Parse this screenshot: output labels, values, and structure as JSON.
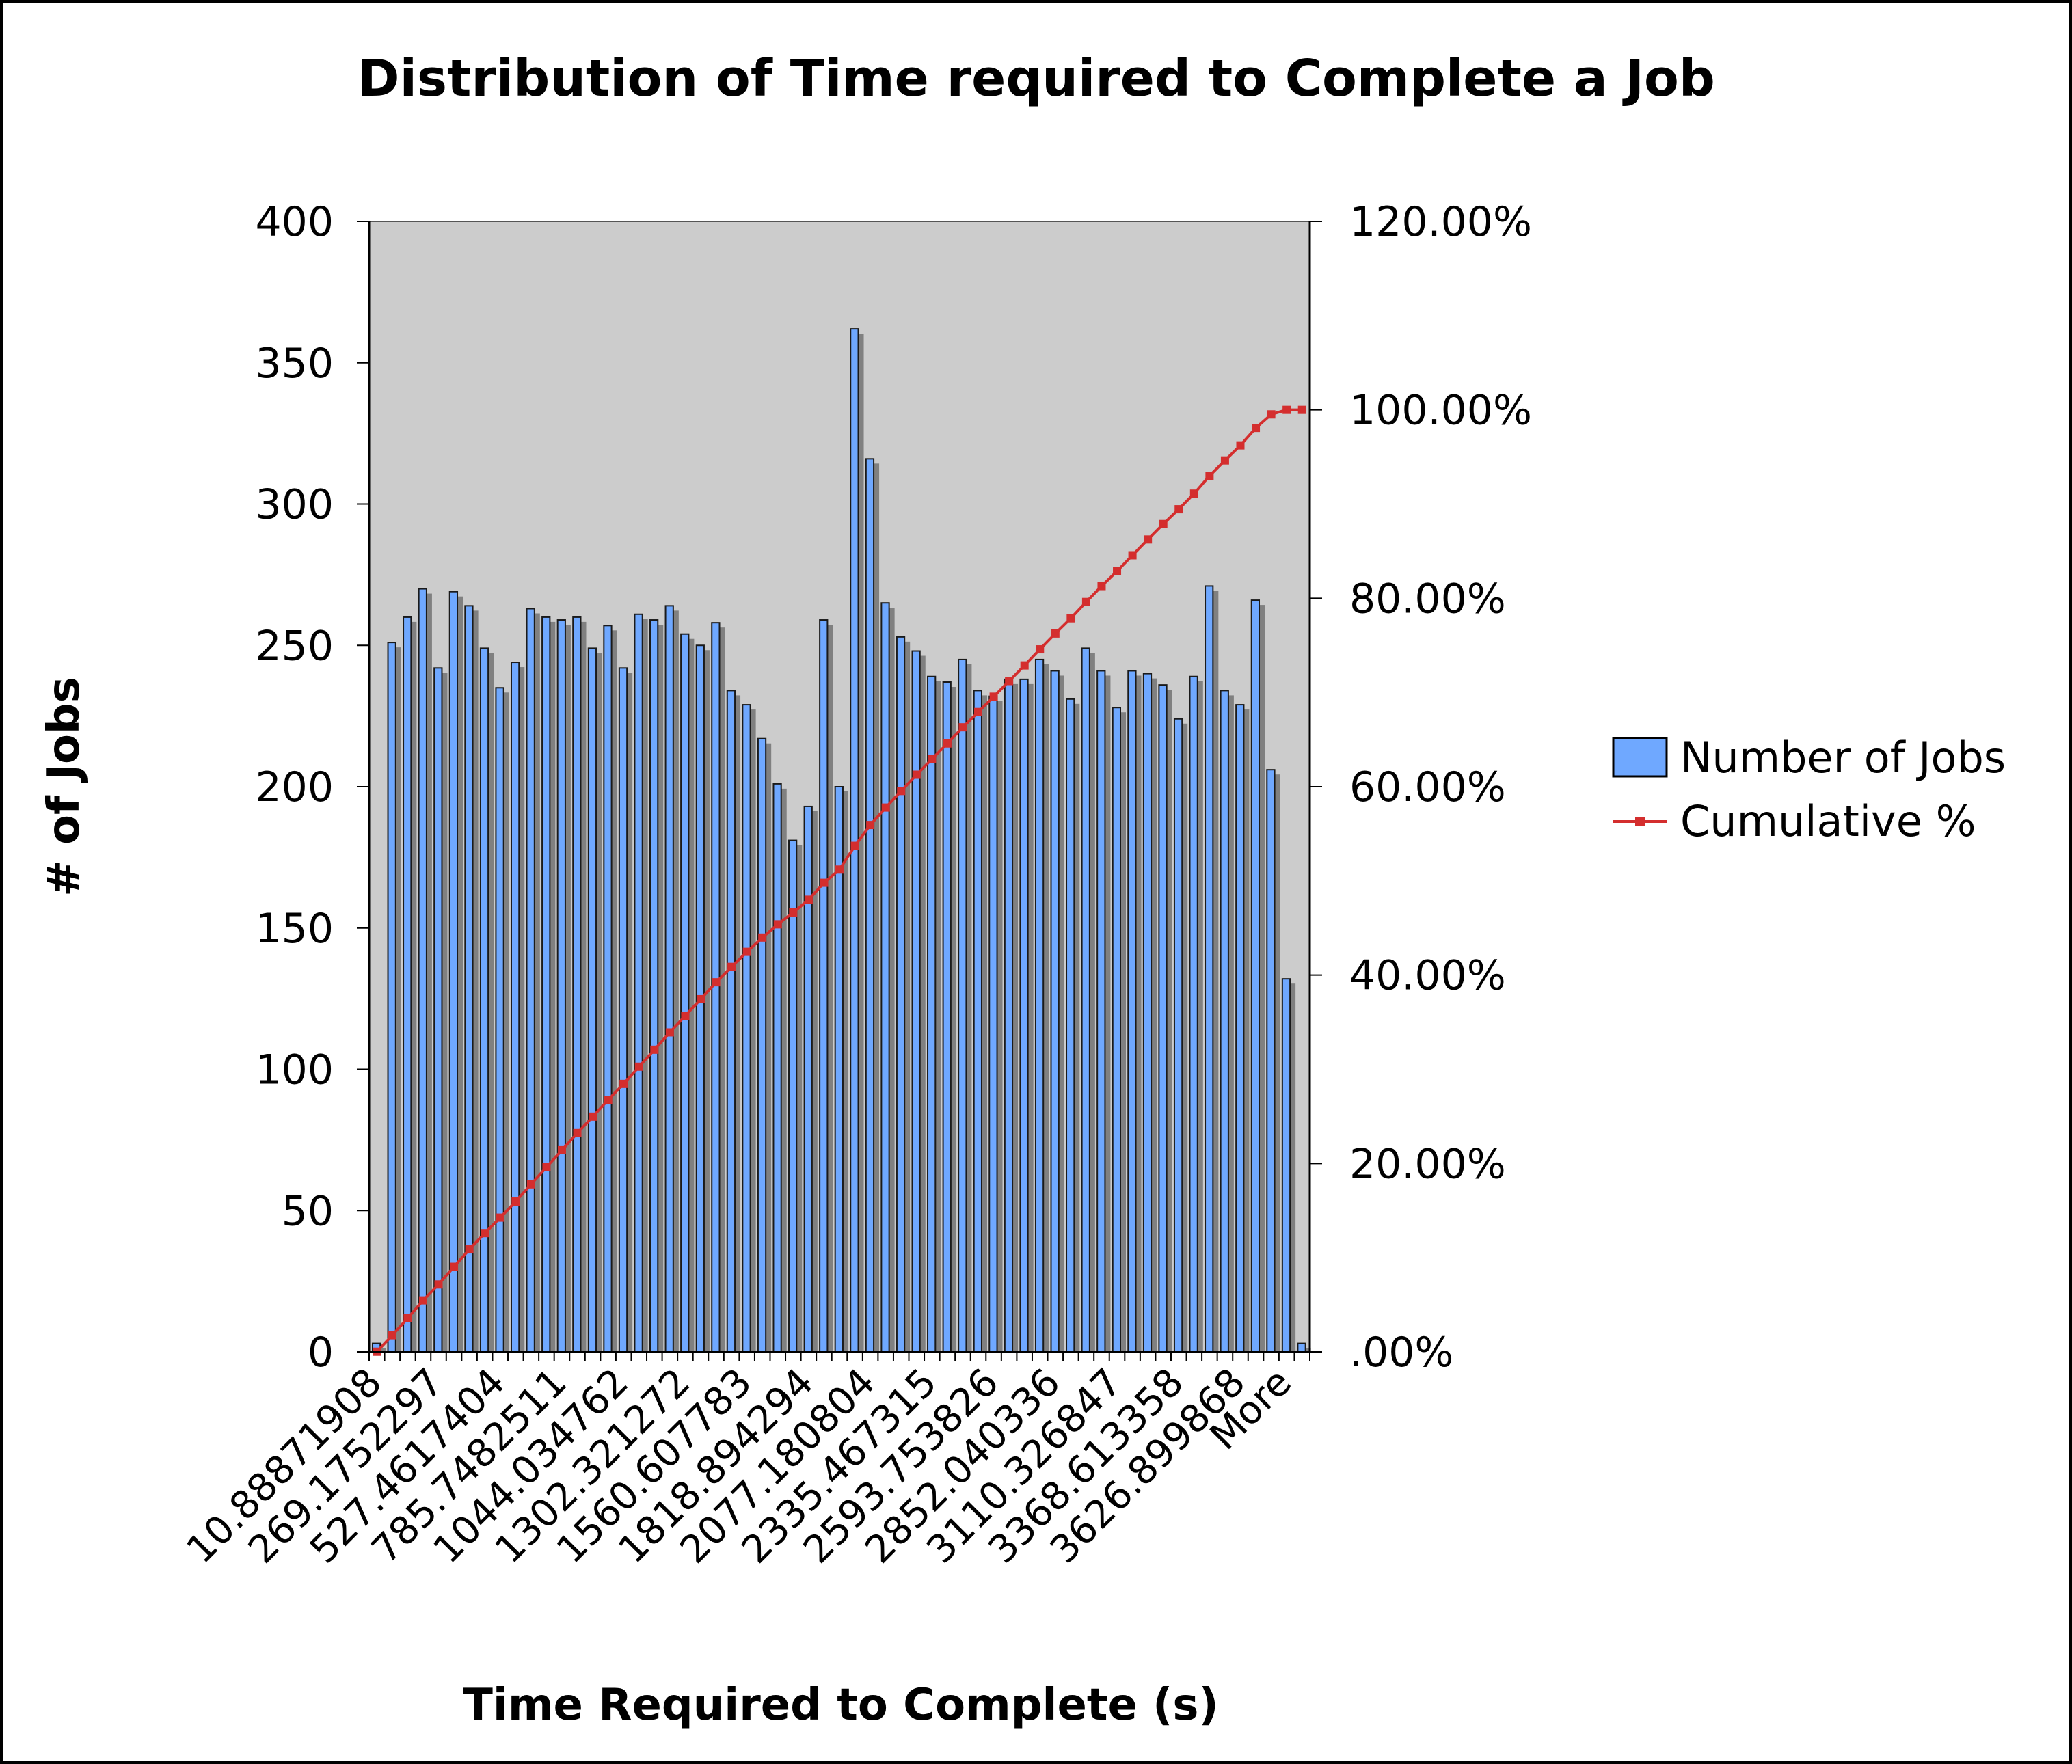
{
  "chart_data": {
    "type": "bar",
    "title": "Distribution of Time required to Complete a Job",
    "xlabel": "Time Required to Complete (s)",
    "ylabel": "# of Jobs",
    "ylim": [
      0,
      400
    ],
    "y_ticks": [
      "0",
      "50",
      "100",
      "150",
      "200",
      "250",
      "300",
      "350",
      "400"
    ],
    "y2lim": [
      0,
      1.2
    ],
    "y2_ticks": [
      ".00%",
      "20.00%",
      "40.00%",
      "60.00%",
      "80.00%",
      "100.00%",
      "120.00%"
    ],
    "category_labels": [
      "10.88871908",
      "269.1752297",
      "527.4617404",
      "785.7482511",
      "1044.034762",
      "1302.321272",
      "1560.607783",
      "1818.894294",
      "2077.180804",
      "2335.467315",
      "2593.753826",
      "2852.040336",
      "3110.326847",
      "3368.613358",
      "3626.899868",
      "More"
    ],
    "grid": false,
    "legend_position": "right",
    "series": [
      {
        "name": "Number of Jobs",
        "color": "#6fa8ff",
        "values": [
          3,
          251,
          260,
          270,
          242,
          269,
          264,
          249,
          235,
          244,
          263,
          260,
          259,
          260,
          249,
          257,
          242,
          261,
          259,
          264,
          254,
          250,
          258,
          234,
          229,
          217,
          201,
          181,
          193,
          259,
          200,
          362,
          316,
          265,
          253,
          248,
          239,
          237,
          245,
          234,
          232,
          238,
          238,
          245,
          241,
          231,
          249,
          241,
          228,
          241,
          240,
          236,
          224,
          239,
          271,
          234,
          229,
          266,
          206,
          132,
          3
        ]
      },
      {
        "name": "Cumulative %",
        "color": "#d42e2e",
        "axis": "secondary",
        "values": [
          0.0002,
          0.0177,
          0.0358,
          0.0547,
          0.0716,
          0.0903,
          0.1088,
          0.1261,
          0.1425,
          0.1596,
          0.1779,
          0.1961,
          0.2141,
          0.2323,
          0.2497,
          0.2676,
          0.2845,
          0.3027,
          0.3208,
          0.3392,
          0.3569,
          0.3744,
          0.3924,
          0.4087,
          0.4247,
          0.4398,
          0.4539,
          0.4665,
          0.48,
          0.498,
          0.512,
          0.5372,
          0.5593,
          0.5778,
          0.5954,
          0.6127,
          0.6294,
          0.6459,
          0.663,
          0.6793,
          0.6955,
          0.7121,
          0.7287,
          0.7458,
          0.7626,
          0.7787,
          0.7961,
          0.8129,
          0.8288,
          0.8456,
          0.8624,
          0.8788,
          0.8945,
          0.9111,
          0.93,
          0.9463,
          0.9623,
          0.9808,
          0.9952,
          1.0,
          1.0
        ]
      }
    ]
  }
}
